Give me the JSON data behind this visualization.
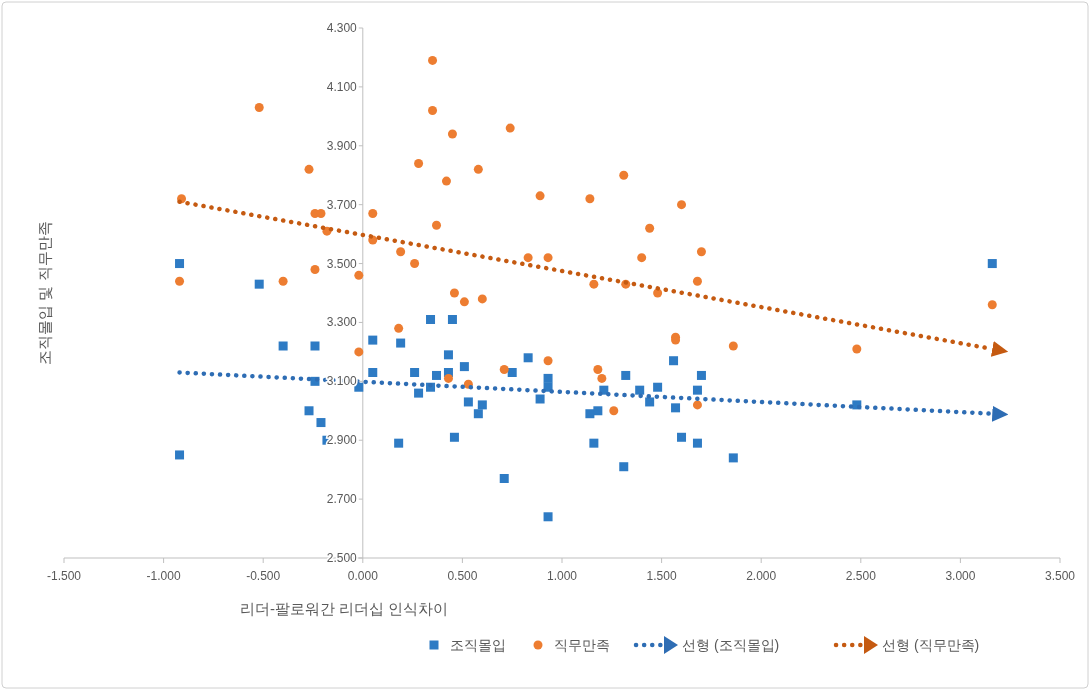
{
  "chart_data": {
    "type": "scatter",
    "xlabel": "리더-팔로워간 리더십 인식차이",
    "ylabel": "조직몰입 및 직무만족",
    "xlim": [
      -1.5,
      3.5
    ],
    "xticks": [
      {
        "value": -1.5,
        "label": "-1.500"
      },
      {
        "value": -1.0,
        "label": "-1.000"
      },
      {
        "value": -0.5,
        "label": "-0.500"
      },
      {
        "value": 0,
        "label": "0.000"
      },
      {
        "value": 0.5,
        "label": "0.500"
      },
      {
        "value": 1.0,
        "label": "1.000"
      },
      {
        "value": 1.5,
        "label": "1.500"
      },
      {
        "value": 2.0,
        "label": "2.000"
      },
      {
        "value": 2.5,
        "label": "2.500"
      },
      {
        "value": 3.0,
        "label": "3.000"
      },
      {
        "value": 3.5,
        "label": "3.500"
      }
    ],
    "ylim": [
      2.5,
      4.3
    ],
    "yticks": [
      {
        "value": 2.5,
        "label": "2.500"
      },
      {
        "value": 2.7,
        "label": "2.700"
      },
      {
        "value": 2.9,
        "label": "2.900"
      },
      {
        "value": 3.1,
        "label": "3.100"
      },
      {
        "value": 3.3,
        "label": "3.300"
      },
      {
        "value": 3.5,
        "label": "3.500"
      },
      {
        "value": 3.7,
        "label": "3.700"
      },
      {
        "value": 3.9,
        "label": "3.900"
      },
      {
        "value": 4.1,
        "label": "4.100"
      },
      {
        "value": 4.3,
        "label": "4.300"
      }
    ],
    "grid": false,
    "legend": "bottom",
    "series": [
      {
        "name": "조직몰입",
        "type": "scatter",
        "marker": "square",
        "color": "#2e7bc4",
        "x": [
          -0.92,
          -0.92,
          -0.52,
          -0.4,
          -0.24,
          -0.24,
          -0.27,
          -0.21,
          -0.18,
          -0.02,
          0.05,
          0.05,
          0.19,
          0.18,
          0.26,
          0.28,
          0.34,
          0.34,
          0.37,
          0.43,
          0.45,
          0.43,
          0.51,
          0.53,
          0.6,
          0.58,
          0.46,
          0.75,
          0.83,
          0.93,
          0.93,
          0.89,
          0.71,
          0.93,
          1.21,
          1.14,
          1.18,
          1.16,
          1.32,
          1.31,
          1.39,
          1.44,
          1.48,
          1.56,
          1.57,
          1.6,
          1.68,
          1.7,
          1.68,
          1.86,
          2.48,
          3.16
        ],
        "values": [
          3.5,
          2.85,
          3.43,
          3.22,
          3.22,
          3.1,
          3.0,
          2.96,
          2.9,
          3.08,
          3.24,
          3.13,
          3.23,
          2.89,
          3.13,
          3.06,
          3.31,
          3.08,
          3.12,
          3.19,
          3.31,
          3.13,
          3.15,
          3.03,
          3.02,
          2.99,
          2.91,
          3.13,
          3.18,
          3.11,
          3.08,
          3.04,
          2.77,
          2.64,
          3.07,
          2.99,
          3.0,
          2.89,
          3.12,
          2.81,
          3.07,
          3.03,
          3.08,
          3.17,
          3.01,
          2.91,
          3.07,
          3.12,
          2.89,
          2.84,
          3.02,
          3.5
        ]
      },
      {
        "name": "직무만족",
        "marker": "circle",
        "color": "#ed7d31",
        "x": [
          -0.52,
          -0.27,
          -0.91,
          -0.24,
          -0.21,
          -0.18,
          -0.24,
          -0.02,
          0.05,
          0.05,
          0.19,
          0.26,
          0.28,
          0.35,
          0.35,
          0.37,
          0.42,
          0.45,
          0.58,
          0.74,
          0.89,
          1.14,
          1.31,
          1.44,
          1.6,
          1.4,
          0.83,
          0.93,
          1.7,
          0.46,
          0.51,
          0.6,
          1.16,
          1.32,
          1.48,
          1.68,
          1.57,
          1.57,
          0.93,
          0.71,
          1.18,
          1.2,
          0.43,
          0.53,
          1.68,
          1.26,
          1.86,
          -0.92,
          -0.4,
          0.18,
          -0.02,
          2.48,
          3.16
        ],
        "values": [
          4.03,
          3.82,
          3.72,
          3.67,
          3.67,
          3.61,
          3.48,
          3.46,
          3.67,
          3.58,
          3.54,
          3.5,
          3.84,
          4.19,
          4.02,
          3.63,
          3.78,
          3.94,
          3.82,
          3.96,
          3.73,
          3.72,
          3.8,
          3.62,
          3.7,
          3.52,
          3.52,
          3.52,
          3.54,
          3.4,
          3.37,
          3.38,
          3.43,
          3.43,
          3.4,
          3.44,
          3.25,
          3.24,
          3.17,
          3.14,
          3.14,
          3.11,
          3.11,
          3.09,
          3.02,
          3.0,
          3.22,
          3.44,
          3.44,
          3.28,
          3.2,
          3.21,
          3.36
        ]
      },
      {
        "name": "선형 (조직몰입)",
        "type": "line",
        "line_style": "dotted",
        "color": "#2e6db4",
        "x": [
          -0.92,
          3.16
        ],
        "values": [
          3.13,
          2.99
        ]
      },
      {
        "name": "선형 (직무만족)",
        "type": "line",
        "line_style": "dotted",
        "color": "#c55a11",
        "x": [
          -0.92,
          3.16
        ],
        "values": [
          3.71,
          3.21
        ]
      }
    ]
  }
}
